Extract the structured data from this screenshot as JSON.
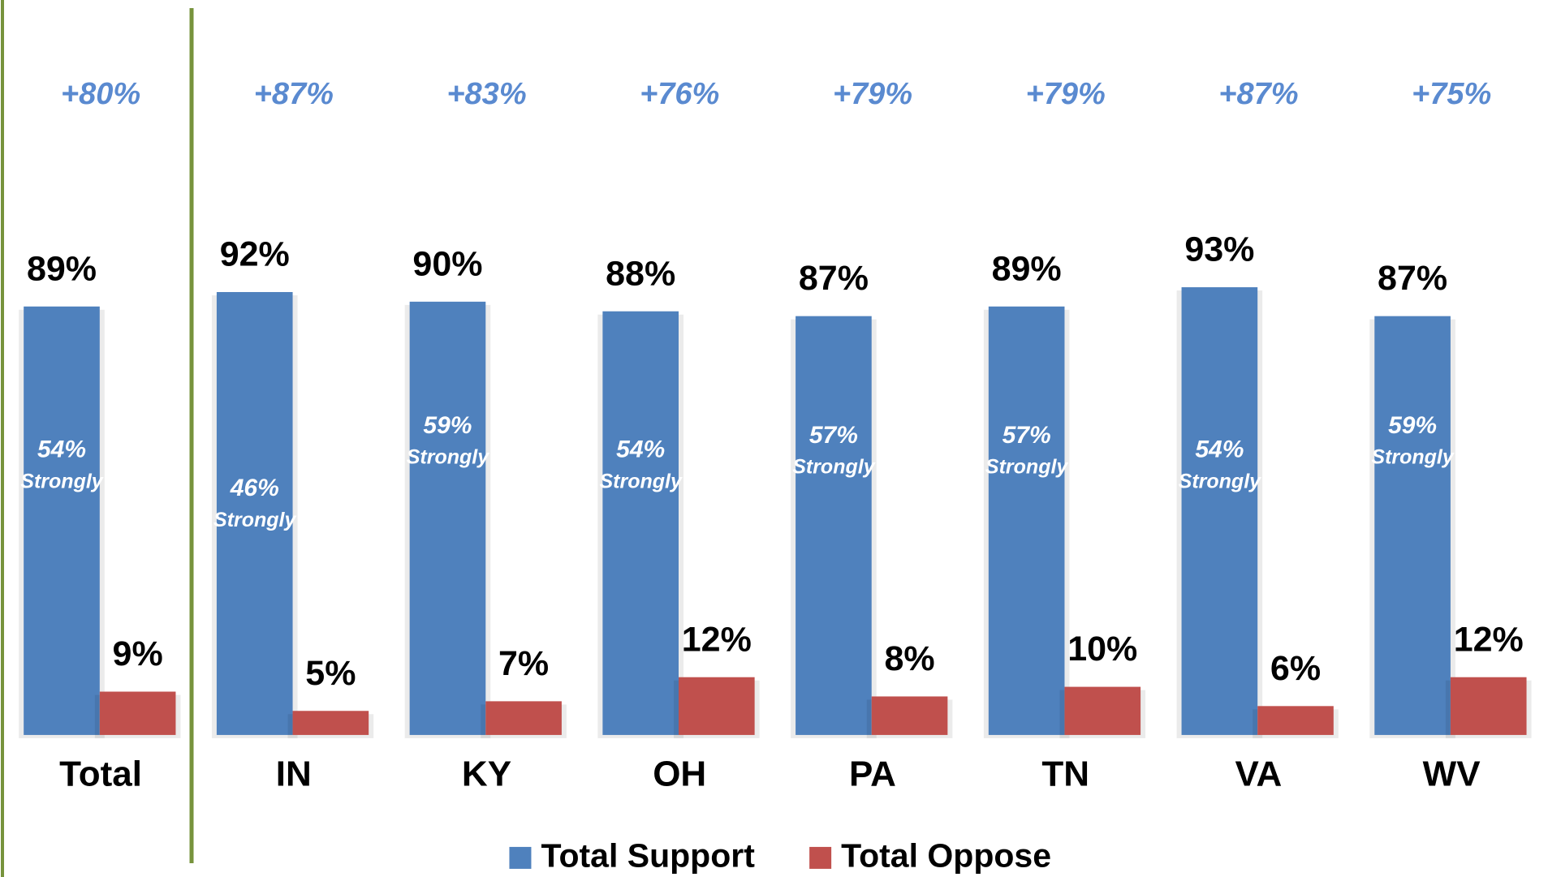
{
  "chart_data": {
    "type": "bar",
    "categories": [
      "Total",
      "IN",
      "KY",
      "OH",
      "PA",
      "TN",
      "VA",
      "WV"
    ],
    "series": [
      {
        "name": "Total Support",
        "color": "#4f81bd",
        "values": [
          89,
          92,
          90,
          88,
          87,
          89,
          93,
          87
        ],
        "value_labels": [
          "89%",
          "92%",
          "90%",
          "88%",
          "87%",
          "89%",
          "93%",
          "87%"
        ]
      },
      {
        "name": "Total Oppose",
        "color": "#c0504d",
        "values": [
          9,
          5,
          7,
          12,
          8,
          10,
          6,
          12
        ],
        "value_labels": [
          "9%",
          "5%",
          "7%",
          "12%",
          "8%",
          "10%",
          "6%",
          "12%"
        ]
      }
    ],
    "strongly": {
      "label": "Strongly",
      "values": [
        54,
        46,
        59,
        54,
        57,
        57,
        54,
        59
      ],
      "value_labels": [
        "54%",
        "46%",
        "59%",
        "54%",
        "57%",
        "57%",
        "54%",
        "59%"
      ]
    },
    "net": {
      "values": [
        80,
        87,
        83,
        76,
        79,
        79,
        87,
        75
      ],
      "value_labels": [
        "+80%",
        "+87%",
        "+83%",
        "+76%",
        "+79%",
        "+79%",
        "+87%",
        "+75%"
      ]
    },
    "ylim": [
      0,
      100
    ],
    "legend": "bottom"
  }
}
